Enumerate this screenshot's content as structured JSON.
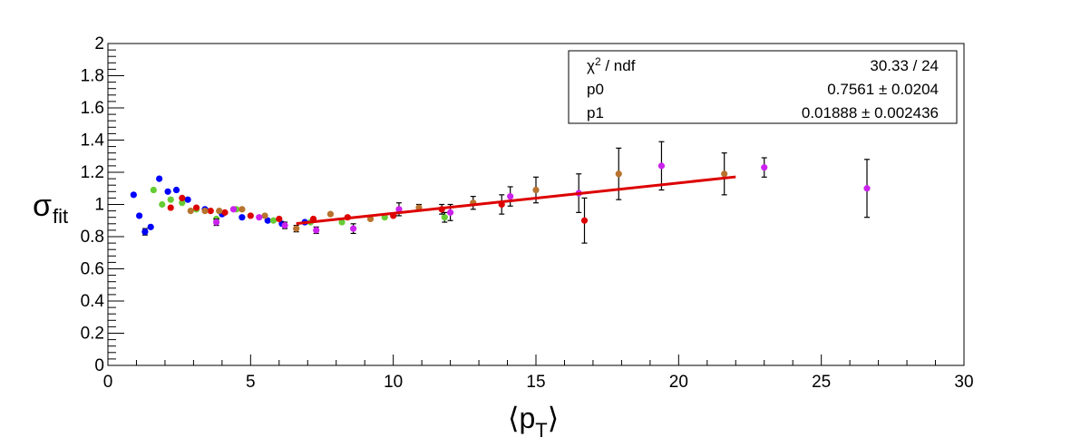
{
  "chart_data": {
    "type": "scatter",
    "xlabel": "⟨p",
    "xlabel_sub": "T",
    "xlabel_close": "⟩",
    "ylabel": "σ",
    "ylabel_sub": "fit",
    "xlim": [
      0,
      30
    ],
    "ylim": [
      0,
      2
    ],
    "x_ticks": [
      "0",
      "5",
      "10",
      "15",
      "20",
      "25",
      "30"
    ],
    "y_ticks": [
      "0",
      "0.2",
      "0.4",
      "0.6",
      "0.8",
      "1",
      "1.2",
      "1.4",
      "1.6",
      "1.8",
      "2"
    ],
    "grid": false,
    "stats_box": {
      "placement": "top-right",
      "rows": [
        {
          "name": "χ",
          "sup": "2",
          "rest": " / ndf",
          "value": "30.33 / 24"
        },
        {
          "name": "p0",
          "sup": "",
          "rest": "",
          "value": "0.7561 ± 0.0204"
        },
        {
          "name": "p1",
          "sup": "",
          "rest": "",
          "value": "0.01888 ± 0.002436"
        }
      ]
    },
    "fit": {
      "type": "linear",
      "p0": 0.7561,
      "p1": 0.01888,
      "x_range": [
        6.6,
        22.0
      ],
      "color": "#dd0000"
    },
    "series": [
      {
        "color": "#0000ff",
        "points": [
          {
            "x": 0.9,
            "y": 1.06,
            "err": 0
          },
          {
            "x": 1.1,
            "y": 0.93,
            "err": 0
          },
          {
            "x": 1.3,
            "y": 0.83,
            "err": 0.02
          },
          {
            "x": 1.5,
            "y": 0.86,
            "err": 0
          },
          {
            "x": 1.8,
            "y": 1.16,
            "err": 0
          },
          {
            "x": 2.1,
            "y": 1.08,
            "err": 0
          },
          {
            "x": 2.4,
            "y": 1.09,
            "err": 0
          },
          {
            "x": 2.8,
            "y": 1.03,
            "err": 0
          },
          {
            "x": 3.4,
            "y": 0.97,
            "err": 0
          },
          {
            "x": 4.0,
            "y": 0.94,
            "err": 0
          },
          {
            "x": 4.7,
            "y": 0.92,
            "err": 0
          },
          {
            "x": 5.6,
            "y": 0.9,
            "err": 0
          },
          {
            "x": 6.1,
            "y": 0.88,
            "err": 0
          },
          {
            "x": 6.9,
            "y": 0.89,
            "err": 0
          }
        ]
      },
      {
        "color": "#66cc33",
        "points": [
          {
            "x": 1.6,
            "y": 1.09,
            "err": 0
          },
          {
            "x": 1.9,
            "y": 1.0,
            "err": 0
          },
          {
            "x": 2.2,
            "y": 1.03,
            "err": 0
          },
          {
            "x": 2.6,
            "y": 1.01,
            "err": 0
          },
          {
            "x": 3.1,
            "y": 0.97,
            "err": 0
          },
          {
            "x": 3.8,
            "y": 0.91,
            "err": 0
          },
          {
            "x": 4.5,
            "y": 0.97,
            "err": 0
          },
          {
            "x": 5.8,
            "y": 0.9,
            "err": 0
          },
          {
            "x": 7.1,
            "y": 0.89,
            "err": 0
          },
          {
            "x": 8.2,
            "y": 0.89,
            "err": 0
          },
          {
            "x": 9.7,
            "y": 0.92,
            "err": 0
          },
          {
            "x": 11.8,
            "y": 0.92,
            "err": 0.03
          }
        ]
      },
      {
        "color": "#dd0000",
        "points": [
          {
            "x": 2.2,
            "y": 0.98,
            "err": 0
          },
          {
            "x": 2.6,
            "y": 1.04,
            "err": 0
          },
          {
            "x": 3.1,
            "y": 0.98,
            "err": 0
          },
          {
            "x": 3.6,
            "y": 0.96,
            "err": 0
          },
          {
            "x": 4.1,
            "y": 0.95,
            "err": 0
          },
          {
            "x": 5.0,
            "y": 0.93,
            "err": 0
          },
          {
            "x": 6.0,
            "y": 0.91,
            "err": 0
          },
          {
            "x": 7.2,
            "y": 0.91,
            "err": 0
          },
          {
            "x": 8.4,
            "y": 0.92,
            "err": 0
          },
          {
            "x": 10.0,
            "y": 0.93,
            "err": 0
          },
          {
            "x": 11.7,
            "y": 0.97,
            "err": 0.03
          },
          {
            "x": 13.8,
            "y": 1.0,
            "err": 0.06
          },
          {
            "x": 16.7,
            "y": 0.9,
            "err": 0.14
          }
        ]
      },
      {
        "color": "#b8732e",
        "points": [
          {
            "x": 2.9,
            "y": 0.96,
            "err": 0
          },
          {
            "x": 3.4,
            "y": 0.96,
            "err": 0
          },
          {
            "x": 3.9,
            "y": 0.96,
            "err": 0
          },
          {
            "x": 4.7,
            "y": 0.97,
            "err": 0
          },
          {
            "x": 5.5,
            "y": 0.93,
            "err": 0
          },
          {
            "x": 6.6,
            "y": 0.85,
            "err": 0.02
          },
          {
            "x": 7.8,
            "y": 0.94,
            "err": 0
          },
          {
            "x": 9.2,
            "y": 0.91,
            "err": 0
          },
          {
            "x": 10.9,
            "y": 0.98,
            "err": 0.02
          },
          {
            "x": 12.8,
            "y": 1.01,
            "err": 0.04
          },
          {
            "x": 15.0,
            "y": 1.09,
            "err": 0.08
          },
          {
            "x": 17.9,
            "y": 1.19,
            "err": 0.16
          },
          {
            "x": 21.6,
            "y": 1.19,
            "err": 0.13
          }
        ]
      },
      {
        "color": "#cc22ee",
        "points": [
          {
            "x": 3.8,
            "y": 0.89,
            "err": 0.02
          },
          {
            "x": 4.4,
            "y": 0.97,
            "err": 0
          },
          {
            "x": 5.3,
            "y": 0.92,
            "err": 0
          },
          {
            "x": 6.2,
            "y": 0.87,
            "err": 0.02
          },
          {
            "x": 7.3,
            "y": 0.84,
            "err": 0.02
          },
          {
            "x": 8.6,
            "y": 0.85,
            "err": 0.03
          },
          {
            "x": 10.2,
            "y": 0.97,
            "err": 0.04
          },
          {
            "x": 12.0,
            "y": 0.95,
            "err": 0.05
          },
          {
            "x": 14.1,
            "y": 1.05,
            "err": 0.06
          },
          {
            "x": 16.5,
            "y": 1.07,
            "err": 0.12
          },
          {
            "x": 19.4,
            "y": 1.24,
            "err": 0.15
          },
          {
            "x": 23.0,
            "y": 1.23,
            "err": 0.06
          },
          {
            "x": 26.6,
            "y": 1.1,
            "err": 0.18
          }
        ]
      }
    ]
  }
}
